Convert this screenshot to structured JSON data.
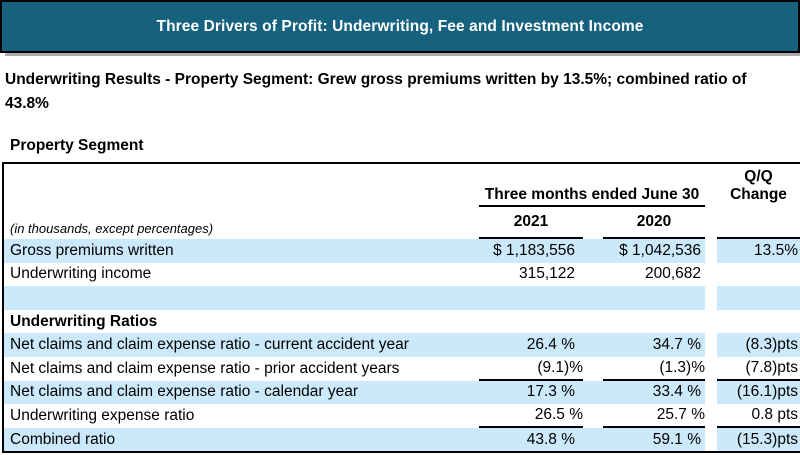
{
  "banner": {
    "title": "Three Drivers of Profit: Underwriting, Fee and Investment Income",
    "bg_color": "#15617E"
  },
  "subtitle": "Underwriting Results - Property Segment: Grew gross premiums written by 13.5%; combined ratio of 43.8%",
  "table": {
    "title": "Property Segment",
    "note": "(in thousands, except percentages)",
    "period_header": "Three months ended June 30",
    "year_columns": {
      "col1": "2021",
      "col2": "2020"
    },
    "change_header": "Q/Q Change",
    "colors": {
      "row_highlight": "#CBE9FA"
    },
    "rows": [
      {
        "label": "Gross premiums written",
        "y2021": "$ 1,183,556",
        "y2020": "$ 1,042,536",
        "change": "13.5%"
      },
      {
        "label": "Underwriting income",
        "y2021": "315,122",
        "y2020": "200,682",
        "change": ""
      },
      {
        "label": "",
        "y2021": "",
        "y2020": "",
        "change": ""
      },
      {
        "label": "Underwriting Ratios",
        "y2021": "",
        "y2020": "",
        "change": ""
      },
      {
        "label": "Net claims and claim expense ratio - current accident year",
        "y2021": "26.4 %",
        "y2020": "34.7 %",
        "change": "(8.3)pts"
      },
      {
        "label": "Net claims and claim expense ratio - prior accident years",
        "y2021": "(9.1)%",
        "y2020": "(1.3)%",
        "change": "(7.8)pts"
      },
      {
        "label": "Net claims and claim expense ratio - calendar year",
        "y2021": "17.3 %",
        "y2020": "33.4 %",
        "change": "(16.1)pts"
      },
      {
        "label": "Underwriting expense ratio",
        "y2021": "26.5 %",
        "y2020": "25.7 %",
        "change": "0.8 pts"
      },
      {
        "label": "Combined ratio",
        "y2021": "43.8 %",
        "y2020": "59.1 %",
        "change": "(15.3)pts"
      }
    ]
  }
}
